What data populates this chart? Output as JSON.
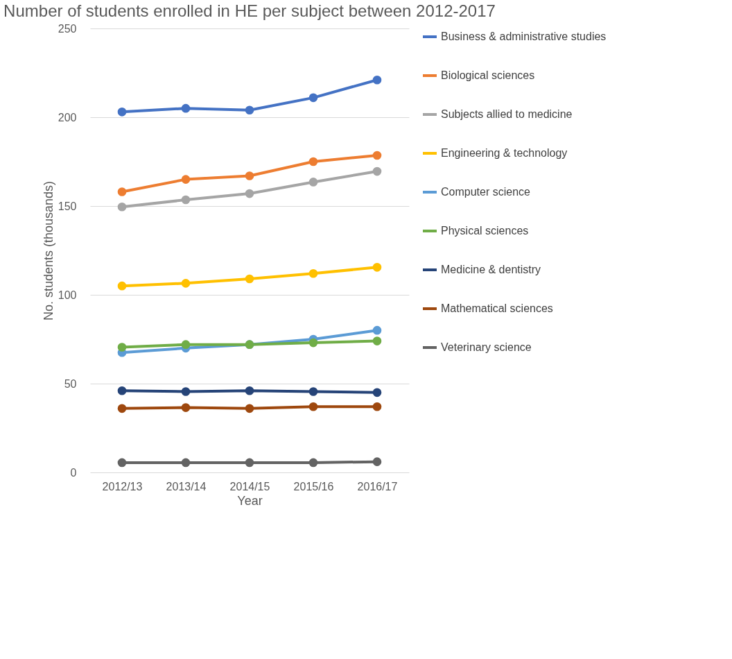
{
  "chart_data": {
    "type": "line",
    "title": "Number of students enrolled in HE per subject between 2012-2017",
    "xlabel": "Year",
    "ylabel": "No. students (thousands)",
    "categories": [
      "2012/13",
      "2013/14",
      "2014/15",
      "2015/16",
      "2016/17"
    ],
    "ylim": [
      0,
      250
    ],
    "yticks": [
      0,
      50,
      100,
      150,
      200,
      250
    ],
    "grid": "y",
    "legend": "right",
    "marker": "circle",
    "line_style": "solid",
    "series": [
      {
        "name": "Business & administrative studies",
        "color": "#4472c4",
        "values": [
          203,
          205,
          204,
          211,
          221
        ]
      },
      {
        "name": "Biological sciences",
        "color": "#ed7d31",
        "values": [
          158,
          165,
          167,
          175,
          178.5
        ]
      },
      {
        "name": "Subjects allied to medicine",
        "color": "#a5a5a5",
        "values": [
          149.5,
          153.5,
          157,
          163.5,
          169.5
        ]
      },
      {
        "name": "Engineering & technology",
        "color": "#ffc000",
        "values": [
          105,
          106.5,
          109,
          112,
          115.5
        ]
      },
      {
        "name": "Computer science",
        "color": "#5b9bd5",
        "values": [
          67.5,
          70,
          72,
          75,
          80
        ]
      },
      {
        "name": "Physical sciences",
        "color": "#70ad47",
        "values": [
          70.5,
          72,
          72,
          73,
          74
        ]
      },
      {
        "name": "Medicine & dentistry",
        "color": "#264478",
        "values": [
          46,
          45.5,
          46,
          45.5,
          45
        ]
      },
      {
        "name": "Mathematical sciences",
        "color": "#9e480e",
        "values": [
          36,
          36.5,
          36,
          37,
          37
        ]
      },
      {
        "name": "Veterinary science",
        "color": "#636363",
        "values": [
          5.5,
          5.5,
          5.5,
          5.5,
          6
        ]
      }
    ]
  }
}
